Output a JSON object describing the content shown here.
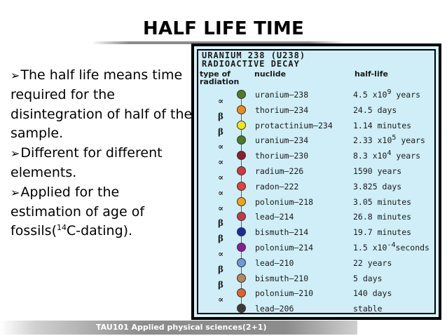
{
  "slide": {
    "title": "HALF LIFE TIME",
    "bullets": [
      "The half life means time required for the disintegration of half of the sample.",
      "Different for different elements.",
      "Applied for the estimation of age of fossils("
    ],
    "bullet3_sup": "14",
    "bullet3_tail": "C-dating).",
    "footer": "TAU101 Applied physical sciences(2+1)"
  },
  "figure": {
    "heading1": "URANIUM 238 (U238)",
    "heading2": "RADIOACTIVE DECAY",
    "col_type": "type of radiation",
    "col_nuclide": "nuclide",
    "col_halflife": "half-life",
    "rows": [
      {
        "nuclide": "uranium—238",
        "hl": "4.5 x10",
        "exp": "9",
        "unit": " years",
        "color": "#4e7a2a"
      },
      {
        "nuclide": "thorium—234",
        "hl": "24.5 days",
        "exp": "",
        "unit": "",
        "color": "#f08a1c"
      },
      {
        "nuclide": "protactinium—234",
        "hl": "1.14 minutes",
        "exp": "",
        "unit": "",
        "color": "#f1e51a"
      },
      {
        "nuclide": "uranium—234",
        "hl": "2.33 x10",
        "exp": "5",
        "unit": " years",
        "color": "#4e7a2a"
      },
      {
        "nuclide": "thorium—230",
        "hl": "8.3 x10",
        "exp": "4",
        "unit": " years",
        "color": "#8b1e2a"
      },
      {
        "nuclide": "radium—226",
        "hl": "1590 years",
        "exp": "",
        "unit": "",
        "color": "#d03a3a"
      },
      {
        "nuclide": "radon—222",
        "hl": "3.825 days",
        "exp": "",
        "unit": "",
        "color": "#e0443a"
      },
      {
        "nuclide": "polonium—218",
        "hl": "3.05 minutes",
        "exp": "",
        "unit": "",
        "color": "#f0a21c"
      },
      {
        "nuclide": "lead—214",
        "hl": "26.8 minutes",
        "exp": "",
        "unit": "",
        "color": "#c23a4a"
      },
      {
        "nuclide": "bismuth—214",
        "hl": "19.7 minutes",
        "exp": "",
        "unit": "",
        "color": "#1e2aa0"
      },
      {
        "nuclide": "polonium—214",
        "hl": "1.5 x10",
        "exp": "-4",
        "unit": "seconds",
        "color": "#8a1e9a"
      },
      {
        "nuclide": "lead—210",
        "hl": "22 years",
        "exp": "",
        "unit": "",
        "color": "#6a9ad0"
      },
      {
        "nuclide": "bismuth—210",
        "hl": "5 days",
        "exp": "",
        "unit": "",
        "color": "#b8865a"
      },
      {
        "nuclide": "polonium—210",
        "hl": "140 days",
        "exp": "",
        "unit": "",
        "color": "#e0642a"
      },
      {
        "nuclide": "lead—206",
        "hl": "stable",
        "exp": "",
        "unit": "",
        "color": "#3a3a3a"
      }
    ],
    "radiation": [
      "∝",
      "β",
      "β",
      "∝",
      "∝",
      "∝",
      "∝",
      "∝",
      "β",
      "β",
      "∝",
      "β",
      "β",
      "∝"
    ]
  }
}
